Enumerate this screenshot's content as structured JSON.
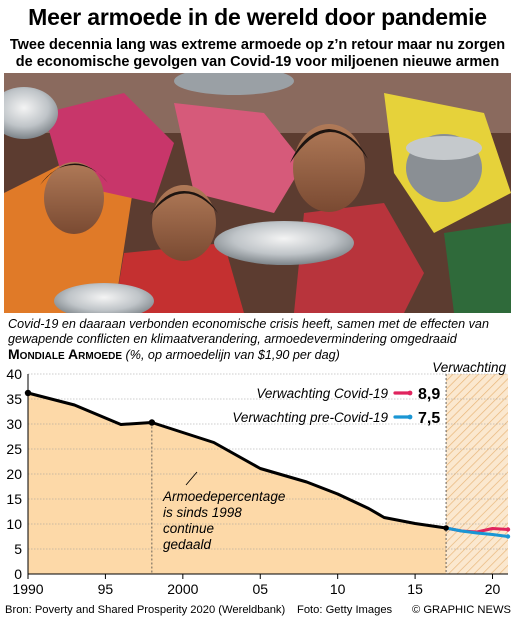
{
  "title": "Meer armoede in de wereld door pandemie",
  "subtitle_line1": "Twee decennia lang was extreme armoede op z’n retour  maar nu zorgen",
  "subtitle_line2": "de economische gevolgen van Covid-19 voor miljoenen nieuwe armen",
  "photo_alt": "Kinderen met lege metalen kommen wachten op voedsel",
  "caption_line1": "Covid-19 en daaraan verbonden economische crisis heeft, samen met de effecten van",
  "caption_line2": "gewapende conflicten en klimaatverandering, armoedevermindering  omgedraaid",
  "chart_data": {
    "type": "line",
    "title": "Mondiale Armoede",
    "unit_label": "(%, op armoedelijn van $1,90 per dag)",
    "x_ticks": [
      1990,
      1995,
      2000,
      2005,
      2010,
      2015,
      2020
    ],
    "x_tick_labels": [
      "1990",
      "95",
      "2000",
      "05",
      "10",
      "15",
      "20"
    ],
    "y_ticks": [
      0,
      5,
      10,
      15,
      20,
      25,
      30,
      35,
      40
    ],
    "xlim": [
      1990,
      2021
    ],
    "ylim": [
      0,
      40
    ],
    "forecast_region": {
      "from": 2017,
      "to": 2021,
      "label": "Verwachting"
    },
    "annotation": {
      "lines": [
        "Armoedepercentage",
        "is sinds 1998",
        "continue",
        "gedaald"
      ],
      "x": 1998
    },
    "legend_placement": "top-right",
    "series": [
      {
        "name": "Armoedepercentage",
        "color": "#000000",
        "x": [
          1990,
          1993,
          1996,
          1998,
          1999,
          2002,
          2005,
          2008,
          2010,
          2012,
          2013,
          2015,
          2017
        ],
        "y": [
          36.2,
          33.8,
          29.9,
          30.3,
          29.3,
          26.3,
          21.1,
          18.4,
          16.0,
          13.1,
          11.3,
          10.1,
          9.2
        ]
      },
      {
        "name": "Verwachting Covid-19",
        "color": "#e0245e",
        "x": [
          2017,
          2018,
          2019,
          2020,
          2021
        ],
        "y": [
          9.2,
          8.6,
          8.4,
          9.1,
          8.9
        ],
        "end_label": "8,9"
      },
      {
        "name": "Verwachting pre-Covid-19",
        "color": "#1a96d4",
        "x": [
          2017,
          2018,
          2019,
          2020,
          2021
        ],
        "y": [
          9.2,
          8.6,
          8.2,
          7.9,
          7.5
        ],
        "end_label": "7,5"
      }
    ]
  },
  "footer": {
    "source": "Bron: Poverty and Shared Prosperity 2020 (Wereldbank)",
    "photo": "Foto: Getty Images",
    "credit": "© GRAPHIC NEWS"
  },
  "watermark": "GRAPHIC NEWS"
}
